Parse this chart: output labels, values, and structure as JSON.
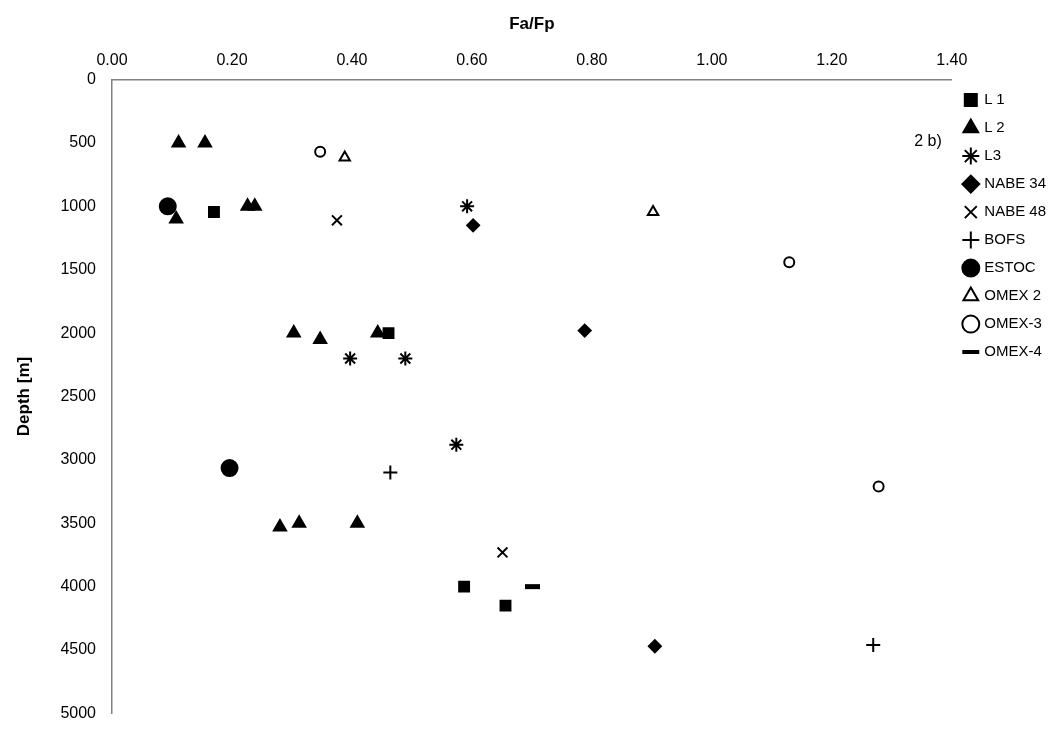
{
  "chart_data": {
    "type": "scatter",
    "xlabel": "Fa/Fp",
    "ylabel": "Depth [m]",
    "annotations": [
      "2 b)"
    ],
    "xlim": [
      0,
      1.4
    ],
    "xticks": [
      {
        "value": 0,
        "label": "0.00"
      },
      {
        "value": 0.2,
        "label": "0.20"
      },
      {
        "value": 0.4,
        "label": "0.40"
      },
      {
        "value": 0.6,
        "label": "0.60"
      },
      {
        "value": 0.8,
        "label": "0.80"
      },
      {
        "value": 1.0,
        "label": "1.00"
      },
      {
        "value": 1.2,
        "label": "1.20"
      },
      {
        "value": 1.4,
        "label": "1.40"
      }
    ],
    "ylim": [
      5000,
      0
    ],
    "yticks": [
      0,
      500,
      1000,
      1500,
      2000,
      2500,
      3000,
      3500,
      4000,
      4500,
      5000
    ],
    "grid": false,
    "legend": "top right",
    "series": [
      {
        "name": "L 1",
        "color": "#000000",
        "marker": "square",
        "x": [
          0.17,
          0.461,
          0.587,
          0.656
        ],
        "values": [
          1045,
          2000,
          4000,
          4150
        ]
      },
      {
        "name": "L 2",
        "color": "#000000",
        "marker": "triangle",
        "x": [
          0.111,
          0.155,
          0.107,
          0.226,
          0.238,
          0.303,
          0.347,
          0.443,
          0.28,
          0.312,
          0.409
        ],
        "values": [
          500,
          500,
          1100,
          1000,
          1000,
          2000,
          2050,
          2000,
          3530,
          3500,
          3500
        ]
      },
      {
        "name": "L3",
        "color": "#000000",
        "marker": "cross",
        "x": [
          0.397,
          0.489,
          0.592,
          0.574
        ],
        "values": [
          2200,
          2200,
          1000,
          2880
        ]
      },
      {
        "name": "NABE 34",
        "color": "#000000",
        "marker": "diamond",
        "x": [
          0.602,
          0.788,
          0.905
        ],
        "values": [
          1150,
          1980,
          4470
        ]
      },
      {
        "name": "NABE 48",
        "color": "#000000",
        "marker": "x",
        "x": [
          0.375,
          0.651
        ],
        "values": [
          1110,
          3730
        ]
      },
      {
        "name": "BOFS",
        "color": "#000000",
        "marker": "cross",
        "x": [
          0.464,
          1.269
        ],
        "values": [
          3100,
          4460
        ]
      },
      {
        "name": "ESTOC",
        "color": "#000000",
        "marker": "circle",
        "x": [
          0.093,
          0.196
        ],
        "values": [
          1000,
          3065
        ]
      },
      {
        "name": "OMEX 2",
        "color": "#000000",
        "marker": "triangle-open",
        "x": [
          0.388,
          0.902
        ],
        "values": [
          615,
          1045
        ]
      },
      {
        "name": "OMEX-3",
        "color": "#000000",
        "marker": "circle-open",
        "x": [
          0.347,
          1.129,
          1.278
        ],
        "values": [
          570,
          1440,
          3210
        ]
      },
      {
        "name": "OMEX-4",
        "color": "#000000",
        "marker": "square",
        "x": [
          0.701
        ],
        "values": [
          4000
        ]
      }
    ]
  }
}
